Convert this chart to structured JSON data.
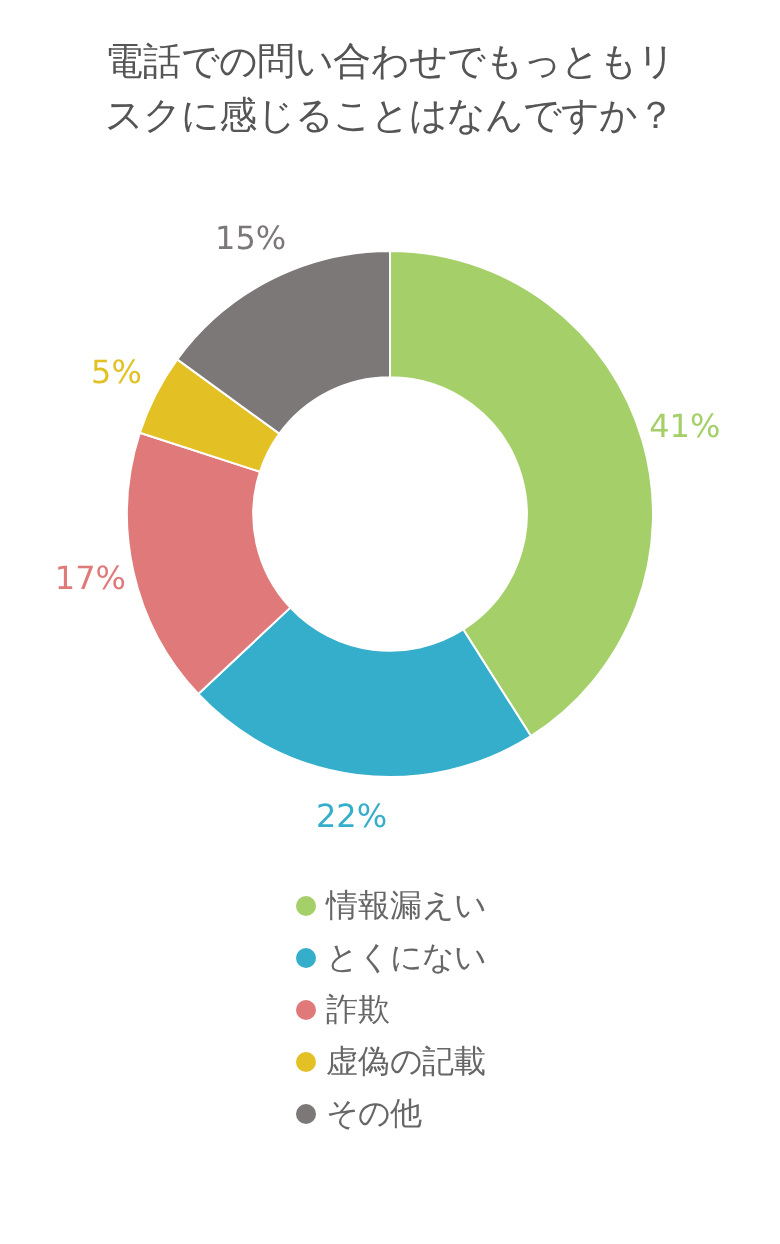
{
  "chart_data": {
    "type": "donut",
    "title": "電話での問い合わせでもっともリスクに感じることはなんですか？",
    "categories": [
      "情報漏えい",
      "とくにない",
      "詐欺",
      "虚偽の記載",
      "その他"
    ],
    "values": [
      41,
      22,
      17,
      5,
      15
    ],
    "value_labels": [
      "41%",
      "22%",
      "17%",
      "5%",
      "15%"
    ],
    "colors": [
      "#a5cf68",
      "#35aecb",
      "#e07a7a",
      "#e3c024",
      "#7d7878"
    ],
    "legend": "bottom",
    "marker": "circle"
  }
}
